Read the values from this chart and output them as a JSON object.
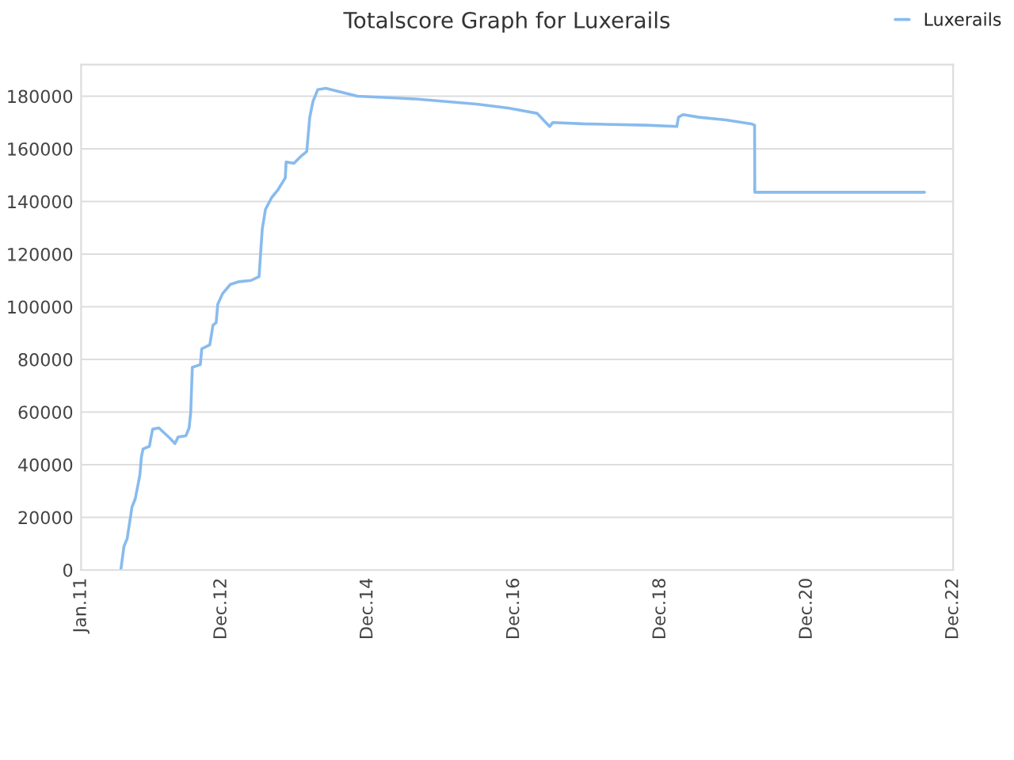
{
  "chart_data": {
    "type": "line",
    "title": "Totalscore Graph for Luxerails",
    "legend": "top right",
    "grid": "y",
    "x": [
      "2011-07-18",
      "2011-08-03",
      "2011-08-19",
      "2011-09-12",
      "2011-09-28",
      "2011-10-21",
      "2011-10-29",
      "2011-11-06",
      "2011-12-08",
      "2011-12-16",
      "2011-12-24",
      "2012-01-24",
      "2012-03-20",
      "2012-04-13",
      "2012-04-29",
      "2012-06-07",
      "2012-06-23",
      "2012-07-01",
      "2012-07-09",
      "2012-08-18",
      "2012-08-25",
      "2012-10-04",
      "2012-10-20",
      "2012-11-05",
      "2012-11-13",
      "2012-12-07",
      "2013-01-15",
      "2013-02-24",
      "2013-04-28",
      "2013-06-07",
      "2013-06-23",
      "2013-07-09",
      "2013-08-09",
      "2013-09-10",
      "2013-10-16",
      "2013-10-20",
      "2013-11-28",
      "2014-01-07",
      "2014-01-31",
      "2014-02-15",
      "2014-03-03",
      "2014-03-27",
      "2014-05-06",
      "2014-10-11",
      "2015-07-16",
      "2016-05-28",
      "2016-11-02",
      "2017-03-25",
      "2017-05-27",
      "2017-06-12",
      "2017-11-10",
      "2018-09-23",
      "2019-02-21",
      "2019-03-01",
      "2019-03-24",
      "2019-06-12",
      "2019-10-24",
      "2020-02-28",
      "2020-03-15",
      "2020-03-16",
      "2022-07-11"
    ],
    "series": [
      {
        "name": "Luxerails",
        "color": "#88bbee",
        "values": [
          0,
          9000,
          12000,
          24000,
          27000,
          36000,
          43000,
          46000,
          47000,
          50500,
          53500,
          54000,
          50000,
          48000,
          50500,
          51000,
          54000,
          60000,
          77000,
          78000,
          84000,
          85500,
          93000,
          94000,
          101000,
          105000,
          108500,
          109500,
          110000,
          111500,
          129500,
          137000,
          141500,
          144500,
          149000,
          155000,
          154500,
          157500,
          159000,
          172000,
          178000,
          182500,
          183000,
          180000,
          179000,
          177000,
          175500,
          173500,
          168500,
          170000,
          169500,
          169000,
          168500,
          172000,
          173000,
          172000,
          171000,
          169500,
          169000,
          143500,
          143500
        ]
      }
    ],
    "xlim": [
      "2011-01-01",
      "2022-12-01"
    ],
    "xticks": [
      {
        "value": "2011-01-01",
        "label": "Jan.11"
      },
      {
        "value": "2012-12-01",
        "label": "Dec.12"
      },
      {
        "value": "2014-12-01",
        "label": "Dec.14"
      },
      {
        "value": "2016-12-01",
        "label": "Dec.16"
      },
      {
        "value": "2018-12-01",
        "label": "Dec.18"
      },
      {
        "value": "2020-12-01",
        "label": "Dec.20"
      },
      {
        "value": "2022-12-01",
        "label": "Dec.22"
      }
    ],
    "ylim": [
      0,
      192000
    ],
    "yticks": [
      0,
      20000,
      40000,
      60000,
      80000,
      100000,
      120000,
      140000,
      160000,
      180000
    ]
  }
}
